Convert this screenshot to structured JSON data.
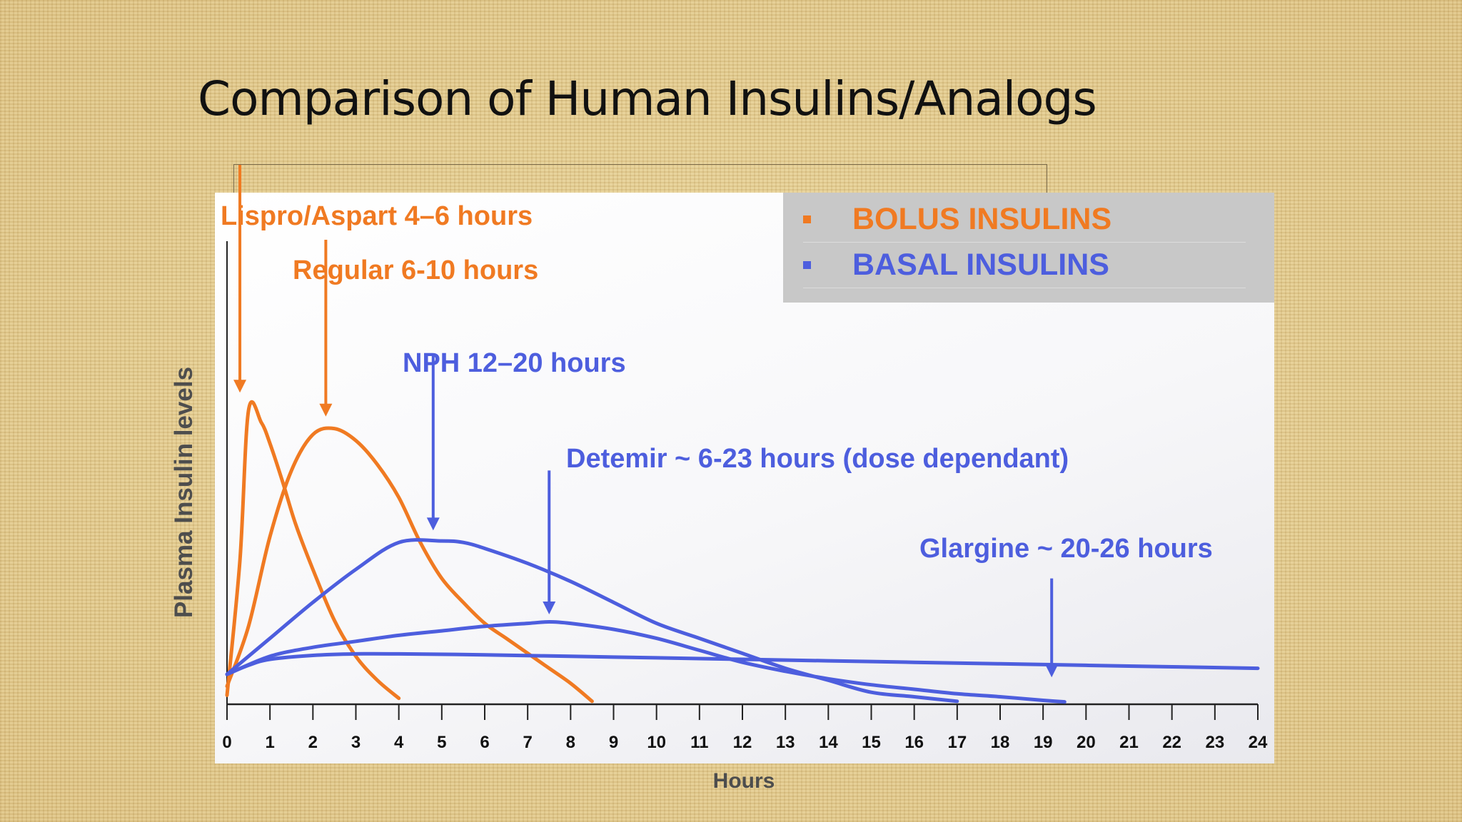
{
  "slide": {
    "title": "Comparison of Human Insulins/Analogs"
  },
  "colors": {
    "bolus": "#f07a22",
    "basal": "#4d5ede",
    "axis": "#222222"
  },
  "chart_data": {
    "type": "line",
    "xlabel": "Hours",
    "ylabel": "Plasma Insulin levels",
    "xlim": [
      0,
      24
    ],
    "ylim": [
      0,
      100
    ],
    "x_ticks": [
      0,
      1,
      2,
      3,
      4,
      5,
      6,
      7,
      8,
      9,
      10,
      11,
      12,
      13,
      14,
      15,
      16,
      17,
      18,
      19,
      20,
      21,
      22,
      23,
      24
    ],
    "grid": false,
    "legend": [
      {
        "label": "BOLUS INSULINS",
        "color": "#f07a22"
      },
      {
        "label": "BASAL INSULINS",
        "color": "#4d5ede"
      }
    ],
    "legend_position": "top-right",
    "series": [
      {
        "name": "Lispro/Aspart 4–6 hours",
        "group": "bolus",
        "color": "#f07a22",
        "x": [
          0,
          0.3,
          0.5,
          0.8,
          1.0,
          1.3,
          1.6,
          2.0,
          2.5,
          3.0,
          3.5,
          4.0
        ],
        "y": [
          3,
          48,
          98,
          94,
          87,
          74,
          60,
          45,
          28,
          16,
          8,
          2
        ]
      },
      {
        "name": "Regular 6-10 hours",
        "group": "bolus",
        "color": "#f07a22",
        "x": [
          0,
          0.5,
          1.0,
          1.5,
          2.0,
          2.5,
          3.0,
          3.5,
          4.0,
          4.5,
          5.0,
          5.5,
          6.0,
          6.5,
          7.0,
          7.5,
          8.0,
          8.5
        ],
        "y": [
          6,
          26,
          56,
          78,
          90,
          92,
          88,
          80,
          69,
          54,
          42,
          34,
          27,
          22,
          17,
          12,
          7,
          1
        ]
      },
      {
        "name": "NPH 12–20 hours",
        "group": "basal",
        "color": "#4d5ede",
        "x": [
          0,
          1,
          2,
          3,
          4,
          5,
          5.5,
          6,
          7,
          8,
          9,
          10,
          11,
          12,
          13,
          14,
          15,
          16,
          17
        ],
        "y": [
          10,
          22,
          34,
          45,
          54,
          54.5,
          54,
          52,
          47,
          41,
          34,
          27,
          22,
          17,
          12,
          8,
          4,
          2.5,
          1
        ]
      },
      {
        "name": "Detemir ~ 6-23 hours (dose dependant)",
        "group": "basal",
        "color": "#4d5ede",
        "x": [
          0,
          1,
          2,
          3,
          4,
          5,
          6,
          7,
          7.5,
          8,
          9,
          10,
          11,
          12,
          13,
          14,
          15,
          16,
          17,
          18,
          19,
          19.5
        ],
        "y": [
          10,
          16,
          19,
          21,
          23,
          24.5,
          26,
          27,
          27.5,
          27,
          25,
          22,
          18,
          14,
          11,
          8.5,
          6.5,
          5,
          3.5,
          2.5,
          1.3,
          0.8
        ]
      },
      {
        "name": "Glargine ~ 20-26 hours",
        "group": "basal",
        "color": "#4d5ede",
        "x": [
          0,
          0.5,
          1,
          2,
          3,
          4,
          6,
          8,
          10,
          12,
          14,
          16,
          18,
          20,
          22,
          24
        ],
        "y": [
          10,
          13,
          15,
          16.3,
          16.8,
          16.8,
          16.5,
          16,
          15.5,
          15,
          14.5,
          14,
          13.5,
          13,
          12.5,
          12
        ]
      }
    ],
    "annotations": [
      {
        "text": "Lispro/Aspart 4–6 hours",
        "group": "bolus",
        "arrow_x": 0.3,
        "arrow_y_top": 180,
        "arrow_y_tip": 104
      },
      {
        "text": "Regular 6-10 hours",
        "group": "bolus",
        "arrow_x": 2.3,
        "arrow_y_top": 155,
        "arrow_y_tip": 96
      },
      {
        "text": "NPH 12–20 hours",
        "group": "basal",
        "arrow_x": 4.8,
        "arrow_y_top": 117,
        "arrow_y_tip": 58
      },
      {
        "text": "Detemir ~ 6-23 hours (dose dependant)",
        "group": "basal",
        "arrow_x": 7.5,
        "arrow_y_top": 78,
        "arrow_y_tip": 30
      },
      {
        "text": "Glargine ~ 20-26 hours",
        "group": "basal",
        "arrow_x": 19.2,
        "arrow_y_top": 42,
        "arrow_y_tip": 9
      }
    ]
  }
}
